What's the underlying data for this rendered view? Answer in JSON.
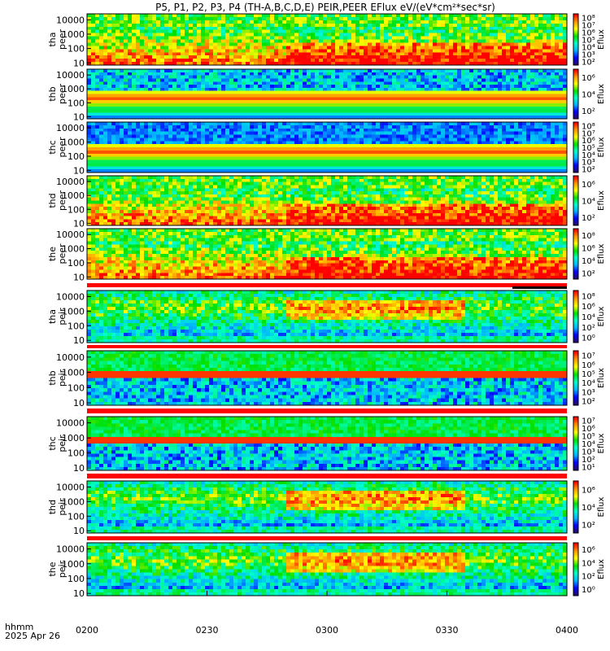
{
  "page_title": "P5, P1, P2, P3, P4 (TH-A,B,C,D,E) PEIR,PEER EFlux eV/(eV*cm²*sec*sr)",
  "chart_data": {
    "type": "heatmap",
    "title": "P5, P1, P2, P3, P4 (TH-A,B,C,D,E) PEIR,PEER EFlux eV/(eV*cm²*sec*sr)",
    "x_label_top": "hhmm",
    "x_label_bottom": "2025 Apr 26",
    "x_ticks": [
      "0200",
      "0230",
      "0300",
      "0330",
      "0400"
    ],
    "x_range": [
      "02:00",
      "04:00"
    ],
    "y_unit": "eV",
    "y_scale": "log",
    "colorbar_label": "Eflux",
    "colorscale": [
      "#2a0a66",
      "#0000ff",
      "#00b4ff",
      "#00ffc8",
      "#00e000",
      "#ffff00",
      "#ff9900",
      "#ff0000"
    ],
    "panels": [
      {
        "probe": "tha",
        "species": "peer",
        "ylabel": "tha\npeer",
        "y_ticks": [
          "10",
          "100",
          "1000",
          "10000"
        ],
        "y_range_eV": [
          7,
          26000
        ],
        "cbar_ticks": [
          "10²",
          "10³",
          "10⁴",
          "10⁵",
          "10⁶",
          "10⁷",
          "10⁸"
        ]
      },
      {
        "probe": "thb",
        "species": "peer",
        "ylabel": "thb\npeer",
        "y_ticks": [
          "10",
          "100",
          "1000",
          "10000"
        ],
        "y_range_eV": [
          7,
          26000
        ],
        "cbar_ticks": [
          "10²",
          "10⁴",
          "10⁶"
        ]
      },
      {
        "probe": "thc",
        "species": "peer",
        "ylabel": "thc\npeer",
        "y_ticks": [
          "10",
          "100",
          "1000",
          "10000"
        ],
        "y_range_eV": [
          7,
          26000
        ],
        "cbar_ticks": [
          "10²",
          "10³",
          "10⁴",
          "10⁵",
          "10⁶",
          "10⁷",
          "10⁸"
        ]
      },
      {
        "probe": "thd",
        "species": "peer",
        "ylabel": "thd\npeer",
        "y_ticks": [
          "10",
          "100",
          "1000",
          "10000"
        ],
        "y_range_eV": [
          7,
          26000
        ],
        "cbar_ticks": [
          "10²",
          "10⁴",
          "10⁶"
        ]
      },
      {
        "probe": "the",
        "species": "peer",
        "ylabel": "the\npeer",
        "y_ticks": [
          "10",
          "100",
          "1000",
          "10000"
        ],
        "y_range_eV": [
          7,
          26000
        ],
        "cbar_ticks": [
          "10²",
          "10⁴",
          "10⁶",
          "10⁸"
        ]
      },
      {
        "probe": "tha",
        "species": "peir",
        "ylabel": "tha\npeir",
        "y_ticks": [
          "10",
          "100",
          "1000",
          "10000"
        ],
        "y_range_eV": [
          7,
          26000
        ],
        "cbar_ticks": [
          "10⁰",
          "10²",
          "10⁴",
          "10⁶",
          "10⁸"
        ]
      },
      {
        "probe": "thb",
        "species": "peir",
        "ylabel": "thb\npeir",
        "y_ticks": [
          "10",
          "100",
          "1000",
          "10000"
        ],
        "y_range_eV": [
          7,
          26000
        ],
        "cbar_ticks": [
          "10²",
          "10³",
          "10⁴",
          "10⁵",
          "10⁶",
          "10⁷"
        ]
      },
      {
        "probe": "thc",
        "species": "peir",
        "ylabel": "thc\npeir",
        "y_ticks": [
          "10",
          "100",
          "1000",
          "10000"
        ],
        "y_range_eV": [
          7,
          26000
        ],
        "cbar_ticks": [
          "10¹",
          "10²",
          "10³",
          "10⁴",
          "10⁵",
          "10⁶",
          "10⁷"
        ]
      },
      {
        "probe": "thd",
        "species": "peir",
        "ylabel": "thd\npeir",
        "y_ticks": [
          "10",
          "100",
          "1000",
          "10000"
        ],
        "y_range_eV": [
          7,
          26000
        ],
        "cbar_ticks": [
          "10²",
          "10⁴",
          "10⁶"
        ]
      },
      {
        "probe": "the",
        "species": "peir",
        "ylabel": "the\npeir",
        "y_ticks": [
          "10",
          "100",
          "1000",
          "10000"
        ],
        "y_range_eV": [
          7,
          26000
        ],
        "cbar_ticks": [
          "10⁰",
          "10²",
          "10⁴",
          "10⁶"
        ]
      }
    ]
  }
}
